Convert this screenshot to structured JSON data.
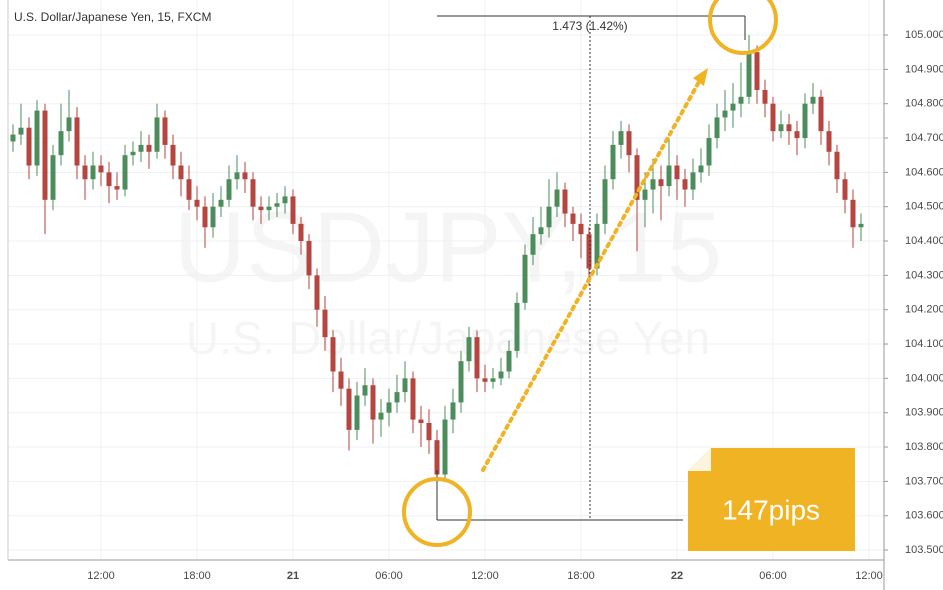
{
  "chart_data": {
    "type": "candlestick",
    "title": "U.S. Dollar/Japanese Yen, 15, FXCM",
    "watermark_symbol": "USDJPY, 15",
    "watermark_name": "U.S. Dollar/Japanese Yen",
    "measure_label": "1.473 (1.42%)",
    "callout": "147pips",
    "up_color": "#4d8c5b",
    "down_color": "#b5453f",
    "annotation_color": "#f0b323",
    "ylim": [
      103.471,
      105.102
    ],
    "yticks": [
      {
        "value": 105.0,
        "label": "105.000"
      },
      {
        "value": 104.9,
        "label": "104.900"
      },
      {
        "value": 104.8,
        "label": "104.800"
      },
      {
        "value": 104.7,
        "label": "104.700"
      },
      {
        "value": 104.6,
        "label": "104.600"
      },
      {
        "value": 104.5,
        "label": "104.500"
      },
      {
        "value": 104.4,
        "label": "104.400"
      },
      {
        "value": 104.3,
        "label": "104.300"
      },
      {
        "value": 104.2,
        "label": "104.200"
      },
      {
        "value": 104.1,
        "label": "104.100"
      },
      {
        "value": 104.0,
        "label": "104.000"
      },
      {
        "value": 103.9,
        "label": "103.900"
      },
      {
        "value": 103.8,
        "label": "103.800"
      },
      {
        "value": 103.7,
        "label": "103.700"
      },
      {
        "value": 103.6,
        "label": "103.600"
      },
      {
        "value": 103.5,
        "label": "103.500"
      }
    ],
    "xlim": [
      -0.625,
      108.875
    ],
    "xticks": [
      {
        "value": 11,
        "label": "12:00"
      },
      {
        "value": 23,
        "label": "18:00"
      },
      {
        "value": 35,
        "label": "21"
      },
      {
        "value": 47,
        "label": "06:00"
      },
      {
        "value": 59,
        "label": "12:00"
      },
      {
        "value": 71,
        "label": "18:00"
      },
      {
        "value": 83,
        "label": "22"
      },
      {
        "value": 95,
        "label": "06:00"
      },
      {
        "value": 107,
        "label": "12:00"
      }
    ],
    "ohlc": [
      [
        104.69,
        104.74,
        104.66,
        104.71
      ],
      [
        104.71,
        104.8,
        104.68,
        104.73
      ],
      [
        104.73,
        104.76,
        104.58,
        104.62
      ],
      [
        104.62,
        104.81,
        104.59,
        104.78
      ],
      [
        104.78,
        104.8,
        104.42,
        104.52
      ],
      [
        104.52,
        104.68,
        104.49,
        104.65
      ],
      [
        104.65,
        104.8,
        104.62,
        104.72
      ],
      [
        104.72,
        104.84,
        104.69,
        104.76
      ],
      [
        104.76,
        104.79,
        104.58,
        104.62
      ],
      [
        104.62,
        104.65,
        104.52,
        104.58
      ],
      [
        104.58,
        104.66,
        104.55,
        104.62
      ],
      [
        104.62,
        104.65,
        104.56,
        104.6
      ],
      [
        104.6,
        104.63,
        104.51,
        104.56
      ],
      [
        104.56,
        104.6,
        104.52,
        104.55
      ],
      [
        104.55,
        104.68,
        104.53,
        104.65
      ],
      [
        104.65,
        104.69,
        104.62,
        104.66
      ],
      [
        104.66,
        104.72,
        104.63,
        104.68
      ],
      [
        104.68,
        104.71,
        104.61,
        104.66
      ],
      [
        104.66,
        104.8,
        104.64,
        104.76
      ],
      [
        104.76,
        104.78,
        104.64,
        104.68
      ],
      [
        104.68,
        104.71,
        104.58,
        104.62
      ],
      [
        104.62,
        104.66,
        104.53,
        104.58
      ],
      [
        104.58,
        104.62,
        104.49,
        104.52
      ],
      [
        104.52,
        104.56,
        104.46,
        104.5
      ],
      [
        104.5,
        104.53,
        104.38,
        104.44
      ],
      [
        104.44,
        104.54,
        104.41,
        104.5
      ],
      [
        104.5,
        104.56,
        104.47,
        104.52
      ],
      [
        104.52,
        104.62,
        104.5,
        104.58
      ],
      [
        104.58,
        104.65,
        104.55,
        104.6
      ],
      [
        104.6,
        104.63,
        104.54,
        104.58
      ],
      [
        104.58,
        104.6,
        104.46,
        104.5
      ],
      [
        104.5,
        104.53,
        104.45,
        104.49
      ],
      [
        104.49,
        104.53,
        104.46,
        104.5
      ],
      [
        104.5,
        104.54,
        104.47,
        104.51
      ],
      [
        104.51,
        104.56,
        104.48,
        104.53
      ],
      [
        104.53,
        104.55,
        104.42,
        104.45
      ],
      [
        104.45,
        104.47,
        104.36,
        104.4
      ],
      [
        104.4,
        104.42,
        104.26,
        104.3
      ],
      [
        104.3,
        104.32,
        104.15,
        104.2
      ],
      [
        104.2,
        104.24,
        104.08,
        104.12
      ],
      [
        104.12,
        104.14,
        103.96,
        104.02
      ],
      [
        104.02,
        104.06,
        103.92,
        103.97
      ],
      [
        103.97,
        104.0,
        103.79,
        103.85
      ],
      [
        103.85,
        103.99,
        103.82,
        103.95
      ],
      [
        103.95,
        104.03,
        103.92,
        103.98
      ],
      [
        103.98,
        104.0,
        103.81,
        103.88
      ],
      [
        103.88,
        103.94,
        103.83,
        103.9
      ],
      [
        103.9,
        103.97,
        103.86,
        103.93
      ],
      [
        103.93,
        104.01,
        103.9,
        103.96
      ],
      [
        103.96,
        104.05,
        103.93,
        104.0
      ],
      [
        104.0,
        104.02,
        103.84,
        103.88
      ],
      [
        103.88,
        103.92,
        103.8,
        103.87
      ],
      [
        103.87,
        103.91,
        103.78,
        103.82
      ],
      [
        103.82,
        103.85,
        103.69,
        103.72
      ],
      [
        103.72,
        103.92,
        103.7,
        103.88
      ],
      [
        103.88,
        103.97,
        103.84,
        103.93
      ],
      [
        103.93,
        104.08,
        103.9,
        104.05
      ],
      [
        104.05,
        104.15,
        104.02,
        104.12
      ],
      [
        104.12,
        104.14,
        103.96,
        104.0
      ],
      [
        104.0,
        104.04,
        103.96,
        103.99
      ],
      [
        103.99,
        104.03,
        103.97,
        104.0
      ],
      [
        104.0,
        104.06,
        103.98,
        104.02
      ],
      [
        104.02,
        104.11,
        104.0,
        104.08
      ],
      [
        104.08,
        104.25,
        104.06,
        104.22
      ],
      [
        104.22,
        104.39,
        104.2,
        104.36
      ],
      [
        104.36,
        104.47,
        104.33,
        104.42
      ],
      [
        104.42,
        104.5,
        104.39,
        104.44
      ],
      [
        104.44,
        104.58,
        104.41,
        104.5
      ],
      [
        104.5,
        104.6,
        104.47,
        104.55
      ],
      [
        104.55,
        104.57,
        104.44,
        104.48
      ],
      [
        104.48,
        104.5,
        104.4,
        104.45
      ],
      [
        104.45,
        104.48,
        104.35,
        104.42
      ],
      [
        104.42,
        104.44,
        104.27,
        104.32
      ],
      [
        104.32,
        104.48,
        104.3,
        104.45
      ],
      [
        104.45,
        104.62,
        104.42,
        104.58
      ],
      [
        104.58,
        104.72,
        104.55,
        104.68
      ],
      [
        104.68,
        104.75,
        104.64,
        104.72
      ],
      [
        104.72,
        104.74,
        104.6,
        104.65
      ],
      [
        104.65,
        104.67,
        104.37,
        104.52
      ],
      [
        104.52,
        104.6,
        104.44,
        104.55
      ],
      [
        104.55,
        104.64,
        104.48,
        104.58
      ],
      [
        104.58,
        104.62,
        104.46,
        104.56
      ],
      [
        104.56,
        104.7,
        104.53,
        104.62
      ],
      [
        104.62,
        104.65,
        104.52,
        104.58
      ],
      [
        104.58,
        104.61,
        104.5,
        104.55
      ],
      [
        104.55,
        104.64,
        104.52,
        104.6
      ],
      [
        104.6,
        104.67,
        104.57,
        104.62
      ],
      [
        104.62,
        104.74,
        104.59,
        104.7
      ],
      [
        104.7,
        104.8,
        104.67,
        104.76
      ],
      [
        104.76,
        104.84,
        104.72,
        104.78
      ],
      [
        104.78,
        104.86,
        104.73,
        104.8
      ],
      [
        104.8,
        104.92,
        104.76,
        104.82
      ],
      [
        104.82,
        105.0,
        104.8,
        104.95
      ],
      [
        104.95,
        104.97,
        104.8,
        104.84
      ],
      [
        104.84,
        104.87,
        104.76,
        104.8
      ],
      [
        104.8,
        104.82,
        104.69,
        104.72
      ],
      [
        104.72,
        104.78,
        104.7,
        104.74
      ],
      [
        104.74,
        104.77,
        104.68,
        104.72
      ],
      [
        104.72,
        104.75,
        104.65,
        104.7
      ],
      [
        104.7,
        104.83,
        104.67,
        104.8
      ],
      [
        104.8,
        104.86,
        104.77,
        104.82
      ],
      [
        104.82,
        104.84,
        104.68,
        104.72
      ],
      [
        104.72,
        104.75,
        104.62,
        104.66
      ],
      [
        104.66,
        104.68,
        104.54,
        104.58
      ],
      [
        104.58,
        104.6,
        104.48,
        104.52
      ],
      [
        104.52,
        104.55,
        104.38,
        104.44
      ],
      [
        104.44,
        104.48,
        104.4,
        104.45
      ]
    ]
  }
}
